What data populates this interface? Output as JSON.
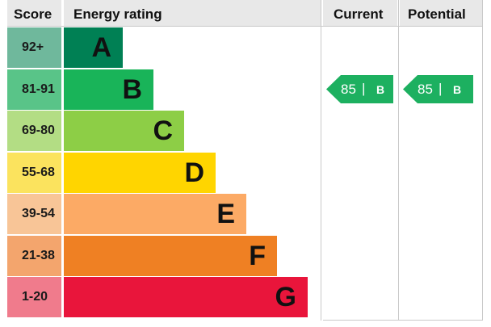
{
  "chart_data": {
    "type": "table",
    "headers": {
      "score": "Score",
      "rating": "Energy rating",
      "current": "Current",
      "potential": "Potential"
    },
    "bands": [
      {
        "score": "92+",
        "letter": "A",
        "color": "#008054",
        "score_color": "#6fb89c"
      },
      {
        "score": "81-91",
        "letter": "B",
        "color": "#19b459",
        "score_color": "#59c488"
      },
      {
        "score": "69-80",
        "letter": "C",
        "color": "#8dce46",
        "score_color": "#b3dd84"
      },
      {
        "score": "55-68",
        "letter": "D",
        "color": "#ffd500",
        "score_color": "#fbe35e"
      },
      {
        "score": "39-54",
        "letter": "E",
        "color": "#fcaa65",
        "score_color": "#f8c597"
      },
      {
        "score": "21-38",
        "letter": "F",
        "color": "#ef8023",
        "score_color": "#f3a56d"
      },
      {
        "score": "1-20",
        "letter": "G",
        "color": "#e9153b",
        "score_color": "#f07b8c"
      }
    ],
    "current": {
      "value": "85",
      "separator": "|",
      "band": "B",
      "color": "#1db060"
    },
    "potential": {
      "value": "85",
      "separator": "|",
      "band": "B",
      "color": "#1db060"
    }
  }
}
